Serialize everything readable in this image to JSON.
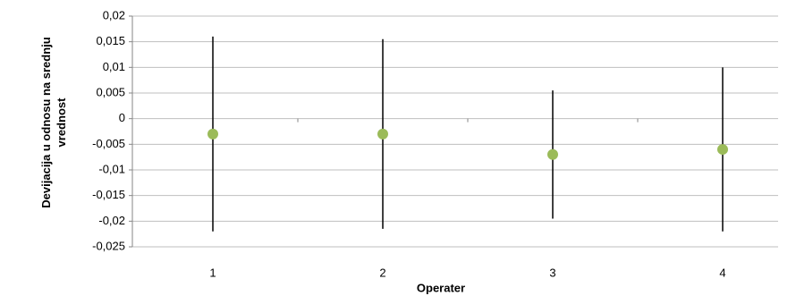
{
  "chart_data": {
    "type": "errorbar",
    "xlabel": "Operater",
    "ylabel": "Devijacija u odnosu na srednju vrednost",
    "categories": [
      "1",
      "2",
      "3",
      "4"
    ],
    "values": [
      -0.003,
      -0.003,
      -0.007,
      -0.006
    ],
    "errors": [
      0.019,
      0.0185,
      0.0125,
      0.016
    ],
    "color": "#9bbb59",
    "error_color": "#000000",
    "ylim": [
      -0.025,
      0.02
    ],
    "yticks": [
      {
        "value": -0.025,
        "label": "-0,025"
      },
      {
        "value": -0.02,
        "label": "-0,02"
      },
      {
        "value": -0.015,
        "label": "-0,015"
      },
      {
        "value": -0.01,
        "label": "-0,01"
      },
      {
        "value": -0.005,
        "label": "-0,005"
      },
      0,
      {
        "value": 0.005,
        "label": "0,005"
      },
      {
        "value": 0.01,
        "label": "0,01"
      },
      {
        "value": 0.015,
        "label": "0,015"
      },
      {
        "value": 0.02,
        "label": "0,02"
      }
    ],
    "grid": true
  }
}
